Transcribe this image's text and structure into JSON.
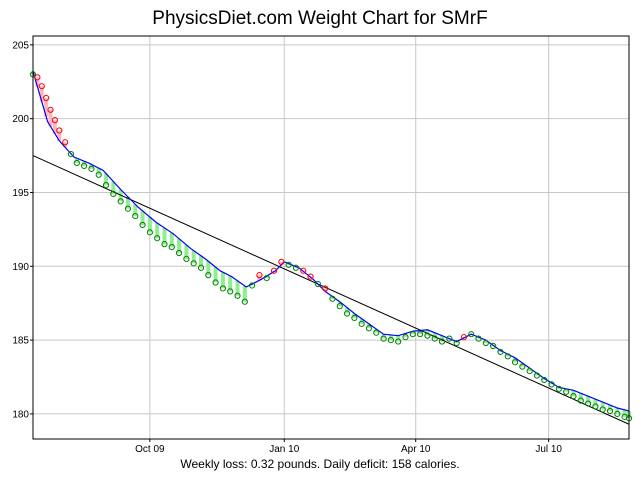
{
  "chart_data": {
    "type": "line",
    "title": "PhysicsDiet.com Weight Chart for SMrF",
    "footer": "Weekly loss: 0.32 pounds. Daily deficit: 158 calories.",
    "xlabel": "",
    "ylabel": "",
    "x_range_days": [
      0,
      408
    ],
    "x_ticks": [
      {
        "label": "Oct 09",
        "day": 80
      },
      {
        "label": "Jan 10",
        "day": 172
      },
      {
        "label": "Apr 10",
        "day": 262
      },
      {
        "label": "Jul 10",
        "day": 353
      }
    ],
    "ylim": [
      178.3,
      205.6
    ],
    "y_ticks": [
      180,
      185,
      190,
      195,
      200,
      205
    ],
    "grid": true,
    "colors": {
      "trend": "#0000ff",
      "fit": "#000000",
      "below_fill": "#90ee90",
      "above_fill": "#ffb6c1",
      "below_marker": "#008000",
      "above_marker": "#ff0000"
    },
    "series": [
      {
        "points": [
          [
            0,
            203.2
          ],
          [
            5,
            201.5
          ],
          [
            10,
            199.8
          ],
          [
            18,
            198.5
          ],
          [
            28,
            197.4
          ],
          [
            38,
            197.0
          ],
          [
            48,
            196.5
          ],
          [
            60,
            195.2
          ],
          [
            72,
            194.0
          ],
          [
            84,
            193.0
          ],
          [
            96,
            192.2
          ],
          [
            108,
            191.2
          ],
          [
            118,
            190.5
          ],
          [
            128,
            189.7
          ],
          [
            136,
            189.3
          ],
          [
            146,
            188.6
          ],
          [
            156,
            189.1
          ],
          [
            166,
            189.7
          ],
          [
            172,
            190.3
          ],
          [
            182,
            189.9
          ],
          [
            192,
            189.1
          ],
          [
            200,
            188.3
          ],
          [
            210,
            187.6
          ],
          [
            220,
            186.8
          ],
          [
            230,
            186.1
          ],
          [
            240,
            185.4
          ],
          [
            250,
            185.3
          ],
          [
            260,
            185.6
          ],
          [
            270,
            185.7
          ],
          [
            280,
            185.3
          ],
          [
            290,
            184.9
          ],
          [
            300,
            185.4
          ],
          [
            310,
            185.0
          ],
          [
            320,
            184.3
          ],
          [
            330,
            183.8
          ],
          [
            340,
            183.1
          ],
          [
            350,
            182.4
          ],
          [
            360,
            181.8
          ],
          [
            370,
            181.6
          ],
          [
            380,
            181.2
          ],
          [
            390,
            180.8
          ],
          [
            400,
            180.4
          ],
          [
            408,
            180.2
          ]
        ]
      },
      {
        "points": [
          [
            0,
            203.0
          ],
          [
            3,
            202.8
          ],
          [
            6,
            202.2
          ],
          [
            9,
            201.4
          ],
          [
            12,
            200.6
          ],
          [
            15,
            199.9
          ],
          [
            18,
            199.2
          ],
          [
            22,
            198.4
          ],
          [
            26,
            197.6
          ],
          [
            30,
            197.0
          ],
          [
            35,
            196.8
          ],
          [
            40,
            196.6
          ],
          [
            45,
            196.2
          ],
          [
            50,
            195.5
          ],
          [
            55,
            194.9
          ],
          [
            60,
            194.4
          ],
          [
            65,
            193.9
          ],
          [
            70,
            193.4
          ],
          [
            75,
            192.8
          ],
          [
            80,
            192.3
          ],
          [
            85,
            191.9
          ],
          [
            90,
            191.5
          ],
          [
            95,
            191.3
          ],
          [
            100,
            190.9
          ],
          [
            105,
            190.5
          ],
          [
            110,
            190.2
          ],
          [
            115,
            189.9
          ],
          [
            120,
            189.4
          ],
          [
            125,
            188.9
          ],
          [
            130,
            188.5
          ],
          [
            135,
            188.3
          ],
          [
            140,
            188.0
          ],
          [
            145,
            187.6
          ],
          [
            150,
            188.7
          ],
          [
            155,
            189.4
          ],
          [
            160,
            189.2
          ],
          [
            165,
            189.7
          ],
          [
            170,
            190.3
          ],
          [
            175,
            190.1
          ],
          [
            180,
            189.9
          ],
          [
            185,
            189.7
          ],
          [
            190,
            189.3
          ],
          [
            195,
            188.8
          ],
          [
            200,
            188.5
          ],
          [
            205,
            187.8
          ],
          [
            210,
            187.3
          ],
          [
            215,
            186.8
          ],
          [
            220,
            186.5
          ],
          [
            225,
            186.1
          ],
          [
            230,
            185.8
          ],
          [
            235,
            185.5
          ],
          [
            240,
            185.1
          ],
          [
            245,
            185.0
          ],
          [
            250,
            184.9
          ],
          [
            255,
            185.2
          ],
          [
            260,
            185.4
          ],
          [
            265,
            185.4
          ],
          [
            270,
            185.3
          ],
          [
            275,
            185.1
          ],
          [
            280,
            184.9
          ],
          [
            285,
            185.1
          ],
          [
            290,
            184.8
          ],
          [
            295,
            185.2
          ],
          [
            300,
            185.4
          ],
          [
            305,
            185.1
          ],
          [
            310,
            184.8
          ],
          [
            315,
            184.6
          ],
          [
            320,
            184.2
          ],
          [
            325,
            183.9
          ],
          [
            330,
            183.5
          ],
          [
            335,
            183.2
          ],
          [
            340,
            182.9
          ],
          [
            345,
            182.6
          ],
          [
            350,
            182.3
          ],
          [
            355,
            182.0
          ],
          [
            360,
            181.7
          ],
          [
            365,
            181.5
          ],
          [
            370,
            181.2
          ],
          [
            375,
            180.9
          ],
          [
            380,
            180.7
          ],
          [
            385,
            180.5
          ],
          [
            390,
            180.3
          ],
          [
            395,
            180.2
          ],
          [
            400,
            180.0
          ],
          [
            405,
            179.8
          ],
          [
            408,
            179.7
          ]
        ]
      },
      {
        "points": [
          [
            0,
            197.5
          ],
          [
            408,
            179.3
          ]
        ]
      }
    ]
  }
}
